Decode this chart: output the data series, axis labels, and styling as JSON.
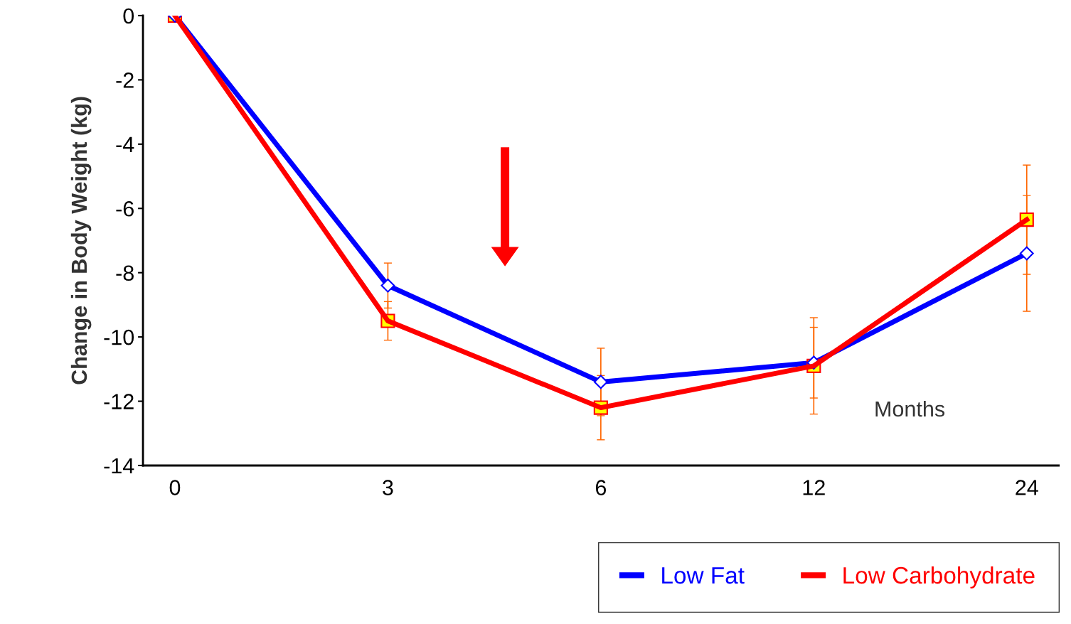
{
  "chart_data": {
    "type": "line",
    "ylabel": "Change in Body Weight (kg)",
    "annotations": [
      "Months"
    ],
    "categories": [
      "0",
      "3",
      "6",
      "12",
      "24"
    ],
    "ylim": [
      -14,
      0
    ],
    "yticks": [
      0,
      -2,
      -4,
      -6,
      -8,
      -10,
      -12,
      -14
    ],
    "grid": false,
    "legend": "bottom right",
    "line_style": "solid",
    "series": [
      {
        "name": "Low Fat",
        "color": "#0000ff",
        "marker": "diamond",
        "values": [
          0,
          -8.4,
          -11.4,
          -10.8,
          -7.4
        ],
        "errors": [
          null,
          0.7,
          1.05,
          1.1,
          1.8
        ]
      },
      {
        "name": "Low Carbohydrate",
        "color": "#ff0000",
        "marker": "square",
        "values": [
          0,
          -9.5,
          -12.2,
          -10.9,
          -6.35
        ],
        "errors": [
          null,
          0.6,
          1.0,
          1.5,
          1.7
        ]
      }
    ]
  }
}
